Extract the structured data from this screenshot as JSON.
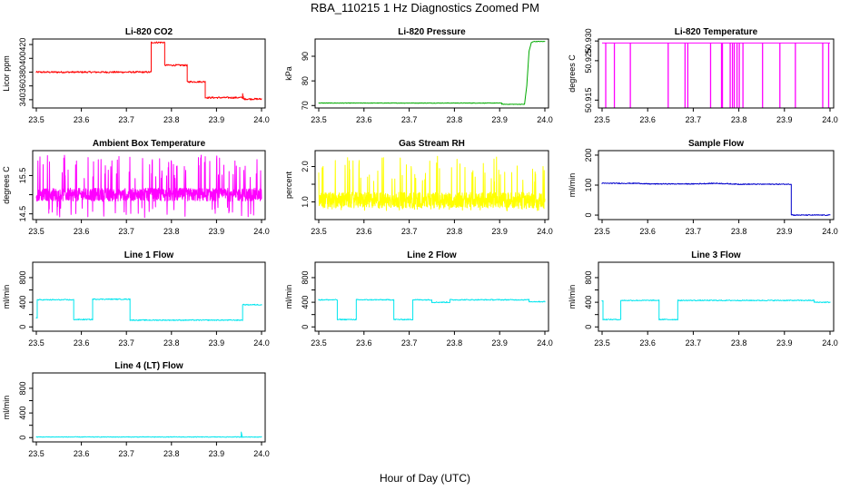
{
  "figure": {
    "title": "RBA_110215  1 Hz Diagnostics Zoomed PM",
    "xlabel": "Hour of Day (UTC)"
  },
  "chart_data": [
    {
      "type": "line",
      "title": "Li-820 CO2",
      "ylabel": "Licor ppm",
      "xlim": [
        23.5,
        24.0
      ],
      "ylim": [
        328,
        428
      ],
      "xticks": [
        23.5,
        23.6,
        23.7,
        23.8,
        23.9,
        24.0
      ],
      "xtick_labels": [
        "23.5",
        "23.6",
        "23.7",
        "23.8",
        "23.9",
        "24.0"
      ],
      "yticks": [
        340,
        360,
        380,
        400,
        420
      ],
      "ytick_labels": [
        "340",
        "360",
        "380",
        "400",
        "420"
      ],
      "color": "#ff0000",
      "series": [
        {
          "x": [
            23.5,
            23.755,
            23.755,
            23.785,
            23.785,
            23.835,
            23.835,
            23.875,
            23.875,
            23.958,
            23.958,
            23.96,
            23.96,
            24.0
          ],
          "y": [
            380,
            380,
            423,
            423,
            390,
            390,
            366,
            366,
            343,
            343,
            349,
            342,
            341,
            341
          ],
          "noise": 1.2
        }
      ]
    },
    {
      "type": "line",
      "title": "Li-820 Pressure",
      "ylabel": "kPa",
      "xlim": [
        23.5,
        24.0
      ],
      "ylim": [
        69,
        97
      ],
      "xticks": [
        23.5,
        23.6,
        23.7,
        23.8,
        23.9,
        24.0
      ],
      "xtick_labels": [
        "23.5",
        "23.6",
        "23.7",
        "23.8",
        "23.9",
        "24.0"
      ],
      "yticks": [
        70,
        80,
        90
      ],
      "ytick_labels": [
        "70",
        "80",
        "90"
      ],
      "color": "#00aa00",
      "series": [
        {
          "x": [
            23.5,
            23.905,
            23.905,
            23.955,
            23.96,
            23.965,
            23.97,
            23.975,
            24.0
          ],
          "y": [
            71,
            71,
            70.5,
            70.5,
            78,
            92,
            95.5,
            96,
            96
          ],
          "noise": 0.1
        }
      ]
    },
    {
      "type": "line",
      "title": "Li-820 Temperature",
      "ylabel": "degrees C",
      "xlim": [
        23.5,
        24.0
      ],
      "ylim": [
        50.913,
        50.9305
      ],
      "xticks": [
        23.5,
        23.6,
        23.7,
        23.8,
        23.9,
        24.0
      ],
      "xtick_labels": [
        "23.5",
        "23.6",
        "23.7",
        "23.8",
        "23.9",
        "24.0"
      ],
      "yticks": [
        50.915,
        50.925,
        50.93
      ],
      "ytick_labels": [
        "50.915",
        "50.925",
        "50.930"
      ],
      "color": "#ff00ff",
      "baseline": 50.9295,
      "dip": 50.913,
      "dips": [
        23.508,
        23.527,
        23.562,
        23.645,
        23.682,
        23.688,
        23.738,
        23.762,
        23.764,
        23.781,
        23.786,
        23.79,
        23.796,
        23.801,
        23.809,
        23.852,
        23.89,
        23.924,
        23.984,
        23.997
      ]
    },
    {
      "type": "line",
      "title": "Ambient Box Temperature",
      "ylabel": "degrees C",
      "xlim": [
        23.5,
        24.0
      ],
      "ylim": [
        14.35,
        16.15
      ],
      "xticks": [
        23.5,
        23.6,
        23.7,
        23.8,
        23.9,
        24.0
      ],
      "xtick_labels": [
        "23.5",
        "23.6",
        "23.7",
        "23.8",
        "23.9",
        "24.0"
      ],
      "yticks": [
        14.5,
        15.0,
        15.5
      ],
      "ytick_labels": [
        "14.5",
        "",
        "15.5"
      ],
      "color": "#ff00ff",
      "noise_band": {
        "center": 15.0,
        "spread": 0.17,
        "spike_max": 16.05,
        "spike_min": 14.4
      }
    },
    {
      "type": "line",
      "title": "Gas Stream RH",
      "ylabel": "percent",
      "xlim": [
        23.5,
        24.0
      ],
      "ylim": [
        0.5,
        2.45
      ],
      "xticks": [
        23.5,
        23.6,
        23.7,
        23.8,
        23.9,
        24.0
      ],
      "xtick_labels": [
        "23.5",
        "23.6",
        "23.7",
        "23.8",
        "23.9",
        "24.0"
      ],
      "yticks": [
        1.0,
        1.5,
        2.0
      ],
      "ytick_labels": [
        "1.0",
        "",
        "2.0"
      ],
      "color": "#ffff00",
      "noise_band": {
        "center": 1.05,
        "spread": 0.22,
        "spike_max": 2.3,
        "spike_min": 0.75
      }
    },
    {
      "type": "line",
      "title": "Sample Flow",
      "ylabel": "ml/min",
      "xlim": [
        23.5,
        24.0
      ],
      "ylim": [
        -15,
        215
      ],
      "xticks": [
        23.5,
        23.6,
        23.7,
        23.8,
        23.9,
        24.0
      ],
      "xtick_labels": [
        "23.5",
        "23.6",
        "23.7",
        "23.8",
        "23.9",
        "24.0"
      ],
      "yticks": [
        0,
        100,
        200
      ],
      "ytick_labels": [
        "0",
        "100",
        "200"
      ],
      "color": "#0000cc",
      "series": [
        {
          "x": [
            23.5,
            23.58,
            23.6,
            23.7,
            23.75,
            23.8,
            23.915,
            23.915,
            23.92,
            24.0
          ],
          "y": [
            106,
            106,
            104,
            104,
            106,
            103,
            103,
            2,
            0,
            0
          ],
          "noise": 1.5
        }
      ]
    },
    {
      "type": "line",
      "title": "Line 1 Flow",
      "ylabel": "ml/min",
      "xlim": [
        23.5,
        24.0
      ],
      "ylim": [
        -70,
        1050
      ],
      "xticks": [
        23.5,
        23.6,
        23.7,
        23.8,
        23.9,
        24.0
      ],
      "xtick_labels": [
        "23.5",
        "23.6",
        "23.7",
        "23.8",
        "23.9",
        "24.0"
      ],
      "yticks": [
        0,
        200,
        400,
        600,
        800
      ],
      "ytick_labels": [
        "0",
        "",
        "400",
        "",
        "800"
      ],
      "color": "#00e5ee",
      "series": [
        {
          "x": [
            23.5,
            23.502,
            23.502,
            23.583,
            23.583,
            23.625,
            23.625,
            23.708,
            23.708,
            23.958,
            23.958,
            24.0
          ],
          "y": [
            150,
            150,
            440,
            440,
            120,
            120,
            450,
            450,
            110,
            110,
            360,
            360
          ],
          "noise": 8
        }
      ]
    },
    {
      "type": "line",
      "title": "Line 2 Flow",
      "ylabel": "ml/min",
      "xlim": [
        23.5,
        24.0
      ],
      "ylim": [
        -70,
        1050
      ],
      "xticks": [
        23.5,
        23.6,
        23.7,
        23.8,
        23.9,
        24.0
      ],
      "xtick_labels": [
        "23.5",
        "23.6",
        "23.7",
        "23.8",
        "23.9",
        "24.0"
      ],
      "yticks": [
        0,
        200,
        400,
        600,
        800
      ],
      "ytick_labels": [
        "0",
        "",
        "400",
        "",
        "800"
      ],
      "color": "#00e5ee",
      "series": [
        {
          "x": [
            23.5,
            23.541,
            23.541,
            23.583,
            23.583,
            23.666,
            23.666,
            23.708,
            23.708,
            23.75,
            23.75,
            23.79,
            23.79,
            23.965,
            23.965,
            24.0
          ],
          "y": [
            440,
            440,
            120,
            120,
            440,
            440,
            120,
            120,
            440,
            440,
            400,
            400,
            440,
            440,
            410,
            410
          ],
          "noise": 8
        }
      ]
    },
    {
      "type": "line",
      "title": "Line 3 Flow",
      "ylabel": "ml/min",
      "xlim": [
        23.5,
        24.0
      ],
      "ylim": [
        -70,
        1050
      ],
      "xticks": [
        23.5,
        23.6,
        23.7,
        23.8,
        23.9,
        24.0
      ],
      "xtick_labels": [
        "23.5",
        "23.6",
        "23.7",
        "23.8",
        "23.9",
        "24.0"
      ],
      "yticks": [
        0,
        200,
        400,
        600,
        800
      ],
      "ytick_labels": [
        "0",
        "",
        "400",
        "",
        "800"
      ],
      "color": "#00e5ee",
      "series": [
        {
          "x": [
            23.5,
            23.502,
            23.502,
            23.541,
            23.541,
            23.625,
            23.625,
            23.666,
            23.666,
            23.965,
            23.965,
            24.0
          ],
          "y": [
            420,
            420,
            120,
            120,
            430,
            430,
            120,
            120,
            430,
            430,
            400,
            400
          ],
          "noise": 8
        }
      ]
    },
    {
      "type": "line",
      "title": "Line 4 (LT) Flow",
      "ylabel": "ml/min",
      "xlim": [
        23.5,
        24.0
      ],
      "ylim": [
        -70,
        1050
      ],
      "xticks": [
        23.5,
        23.6,
        23.7,
        23.8,
        23.9,
        24.0
      ],
      "xtick_labels": [
        "23.5",
        "23.6",
        "23.7",
        "23.8",
        "23.9",
        "24.0"
      ],
      "yticks": [
        0,
        200,
        400,
        600,
        800
      ],
      "ytick_labels": [
        "0",
        "",
        "400",
        "",
        "800"
      ],
      "color": "#00e5ee",
      "series": [
        {
          "x": [
            23.5,
            23.955,
            23.955,
            23.957,
            23.957,
            24.0
          ],
          "y": [
            10,
            10,
            90,
            10,
            10,
            10
          ],
          "noise": 5
        }
      ]
    }
  ]
}
